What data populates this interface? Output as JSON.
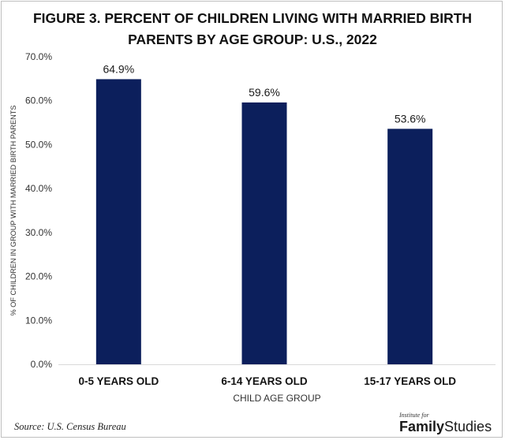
{
  "chart_data": {
    "type": "bar",
    "title_lines": [
      "FIGURE 3. PERCENT OF CHILDREN LIVING WITH MARRIED BIRTH",
      "PARENTS BY AGE GROUP: U.S., 2022"
    ],
    "categories": [
      "0-5 YEARS OLD",
      "6-14 YEARS OLD",
      "15-17 YEARS OLD"
    ],
    "values": [
      64.9,
      59.6,
      53.6
    ],
    "data_labels": [
      "64.9%",
      "59.6%",
      "53.6%"
    ],
    "xlabel": "CHILD AGE GROUP",
    "ylabel": "% OF CHILDREN IN GROUP WITH MARRIED BIRTH PARENTS",
    "ylim": [
      0,
      70
    ],
    "yticks": [
      0,
      10,
      20,
      30,
      40,
      50,
      60,
      70
    ],
    "ytick_labels": [
      "0.0%",
      "10.0%",
      "20.0%",
      "30.0%",
      "40.0%",
      "50.0%",
      "60.0%",
      "70.0%"
    ],
    "grid": false,
    "bar_color": "#0c1f5c"
  },
  "footer": {
    "source": "Source: U.S. Census Bureau",
    "logo_small": "Institute for",
    "logo_bold": "Family",
    "logo_light": "Studies"
  }
}
